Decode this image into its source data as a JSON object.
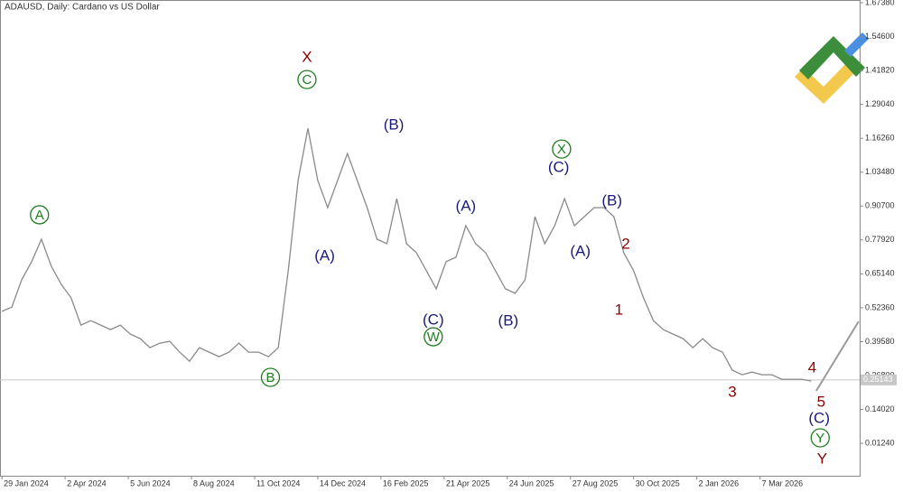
{
  "chart_data": {
    "type": "line",
    "title": "ADAUSD, Daily: Cardano vs US Dollar",
    "x": [
      "2024-01-29",
      "2024-02-08",
      "2024-02-18",
      "2024-02-28",
      "2024-03-09",
      "2024-03-19",
      "2024-03-29",
      "2024-04-08",
      "2024-04-18",
      "2024-04-28",
      "2024-05-08",
      "2024-05-18",
      "2024-05-28",
      "2024-06-07",
      "2024-06-17",
      "2024-06-27",
      "2024-07-07",
      "2024-07-17",
      "2024-07-27",
      "2024-08-06",
      "2024-08-16",
      "2024-08-26",
      "2024-09-05",
      "2024-09-15",
      "2024-09-25",
      "2024-10-05",
      "2024-10-15",
      "2024-10-25",
      "2024-11-04",
      "2024-11-14",
      "2024-11-24",
      "2024-12-04",
      "2024-12-14",
      "2024-12-24",
      "2025-01-03",
      "2025-01-13",
      "2025-01-23",
      "2025-02-02",
      "2025-02-12",
      "2025-02-22",
      "2025-03-04",
      "2025-03-14",
      "2025-03-24",
      "2025-04-03",
      "2025-04-13",
      "2025-04-23",
      "2025-05-03",
      "2025-05-13",
      "2025-05-23",
      "2025-06-02",
      "2025-06-12",
      "2025-06-22",
      "2025-07-02",
      "2025-07-12",
      "2025-07-22",
      "2025-08-01",
      "2025-08-11",
      "2025-08-21",
      "2025-08-31",
      "2025-09-10",
      "2025-09-20",
      "2025-09-30",
      "2025-10-10",
      "2025-10-20",
      "2025-10-30",
      "2025-11-09",
      "2025-11-19",
      "2025-11-29",
      "2025-12-09",
      "2025-12-19",
      "2025-12-29",
      "2026-01-08",
      "2026-01-18",
      "2026-01-28",
      "2026-02-07",
      "2026-02-17",
      "2026-02-27",
      "2026-03-09",
      "2026-03-19",
      "2026-03-29",
      "2026-04-08",
      "2026-04-18",
      "2026-04-28"
    ],
    "series": [
      {
        "color": "#8a8a8a",
        "values": [
          0.51,
          0.526,
          0.629,
          0.697,
          0.782,
          0.68,
          0.612,
          0.561,
          0.458,
          0.475,
          0.458,
          0.441,
          0.458,
          0.424,
          0.407,
          0.373,
          0.39,
          0.397,
          0.356,
          0.322,
          0.373,
          0.356,
          0.339,
          0.356,
          0.39,
          0.356,
          0.356,
          0.339,
          0.373,
          0.663,
          1.003,
          1.2,
          1.003,
          0.901,
          1.003,
          1.105,
          1.003,
          0.901,
          0.782,
          0.765,
          0.935,
          0.765,
          0.731,
          0.663,
          0.595,
          0.697,
          0.714,
          0.833,
          0.765,
          0.731,
          0.663,
          0.595,
          0.578,
          0.629,
          0.867,
          0.765,
          0.833,
          0.935,
          0.833,
          0.867,
          0.901,
          0.901,
          0.867,
          0.731,
          0.663,
          0.561,
          0.475,
          0.441,
          0.424,
          0.407,
          0.373,
          0.407,
          0.373,
          0.356,
          0.288,
          0.271,
          0.281,
          0.271,
          0.271,
          0.254,
          0.254,
          0.254,
          0.247
        ]
      }
    ],
    "forecast": {
      "x": [
        "2026-05-03",
        "2026-06-15"
      ],
      "values": [
        0.21,
        0.472
      ],
      "color": "#9a9a9a"
    },
    "last_price": 0.25143,
    "xlim": [
      "2024-01-27",
      "2026-06-16"
    ],
    "ylim": [
      -0.11,
      1.684
    ],
    "yticks": [
      {
        "value": 1.6738,
        "label": "1.67380"
      },
      {
        "value": 1.546,
        "label": "1.54600"
      },
      {
        "value": 1.4182,
        "label": "1.41820"
      },
      {
        "value": 1.2904,
        "label": "1.29040"
      },
      {
        "value": 1.1626,
        "label": "1.16260"
      },
      {
        "value": 1.0348,
        "label": "1.03480"
      },
      {
        "value": 0.907,
        "label": "0.90700"
      },
      {
        "value": 0.7792,
        "label": "0.77920"
      },
      {
        "value": 0.6514,
        "label": "0.65140"
      },
      {
        "value": 0.5236,
        "label": "0.52360"
      },
      {
        "value": 0.3958,
        "label": "0.39580"
      },
      {
        "value": 0.268,
        "label": "0.26800"
      },
      {
        "value": 0.1402,
        "label": "0.14020"
      },
      {
        "value": 0.0124,
        "label": "0.01240"
      }
    ],
    "xticks": [
      {
        "value": "2024-01-29",
        "label": "29 Jan 2024"
      },
      {
        "value": "2024-04-02",
        "label": "2 Apr 2024"
      },
      {
        "value": "2024-06-05",
        "label": "5 Jun 2024"
      },
      {
        "value": "2024-08-08",
        "label": "8 Aug 2024"
      },
      {
        "value": "2024-10-11",
        "label": "11 Oct 2024"
      },
      {
        "value": "2024-12-14",
        "label": "14 Dec 2024"
      },
      {
        "value": "2025-02-16",
        "label": "16 Feb 2025"
      },
      {
        "value": "2025-04-21",
        "label": "21 Apr 2025"
      },
      {
        "value": "2025-06-24",
        "label": "24 Jun 2025"
      },
      {
        "value": "2025-08-27",
        "label": "27 Aug 2025"
      },
      {
        "value": "2025-10-30",
        "label": "30 Oct 2025"
      },
      {
        "value": "2026-01-02",
        "label": "2 Jan 2026"
      },
      {
        "value": "2026-03-07",
        "label": "7 Mar 2026"
      }
    ],
    "annotations": [
      {
        "text": "A",
        "x": "2024-03-07",
        "y": 0.874,
        "color": "#1e7d1e",
        "circled": true
      },
      {
        "text": "X",
        "x": "2024-12-03",
        "y": 1.469,
        "color": "#8b0000",
        "circled": false
      },
      {
        "text": "C",
        "x": "2024-12-03",
        "y": 1.384,
        "color": "#1e7d1e",
        "circled": true
      },
      {
        "text": "B",
        "x": "2024-10-27",
        "y": 0.261,
        "color": "#1e7d1e",
        "circled": true
      },
      {
        "text": "(A)",
        "x": "2024-12-21",
        "y": 0.72,
        "color": "#1a1a7a",
        "circled": false
      },
      {
        "text": "(B)",
        "x": "2025-03-01",
        "y": 1.214,
        "color": "#1a1a7a",
        "circled": false
      },
      {
        "text": "(C)",
        "x": "2025-04-10",
        "y": 0.479,
        "color": "#1a1a7a",
        "circled": false
      },
      {
        "text": "W",
        "x": "2025-04-10",
        "y": 0.414,
        "color": "#1e7d1e",
        "circled": true
      },
      {
        "text": "(A)",
        "x": "2025-05-13",
        "y": 0.908,
        "color": "#1a1a7a",
        "circled": false
      },
      {
        "text": "(B)",
        "x": "2025-06-25",
        "y": 0.475,
        "color": "#1a1a7a",
        "circled": false
      },
      {
        "text": "X",
        "x": "2025-08-18",
        "y": 1.122,
        "color": "#1e7d1e",
        "circled": true
      },
      {
        "text": "(C)",
        "x": "2025-08-15",
        "y": 1.054,
        "color": "#1a1a7a",
        "circled": false
      },
      {
        "text": "(A)",
        "x": "2025-09-06",
        "y": 0.738,
        "color": "#1a1a7a",
        "circled": false
      },
      {
        "text": "(B)",
        "x": "2025-10-08",
        "y": 0.929,
        "color": "#1a1a7a",
        "circled": false
      },
      {
        "text": "1",
        "x": "2025-10-15",
        "y": 0.516,
        "color": "#8b0000",
        "circled": false
      },
      {
        "text": "2",
        "x": "2025-10-22",
        "y": 0.765,
        "color": "#8b0000",
        "circled": false
      },
      {
        "text": "3",
        "x": "2026-02-07",
        "y": 0.206,
        "color": "#8b0000",
        "circled": false
      },
      {
        "text": "4",
        "x": "2026-04-29",
        "y": 0.298,
        "color": "#8b0000",
        "circled": false
      },
      {
        "text": "5",
        "x": "2026-05-08",
        "y": 0.169,
        "color": "#8b0000",
        "circled": false
      },
      {
        "text": "(C)",
        "x": "2026-05-06",
        "y": 0.108,
        "color": "#1a1a7a",
        "circled": false
      },
      {
        "text": "Y",
        "x": "2026-05-07",
        "y": 0.033,
        "color": "#1e7d1e",
        "circled": true
      },
      {
        "text": "Y",
        "x": "2026-05-09",
        "y": -0.045,
        "color": "#8b0000",
        "circled": false
      }
    ]
  }
}
